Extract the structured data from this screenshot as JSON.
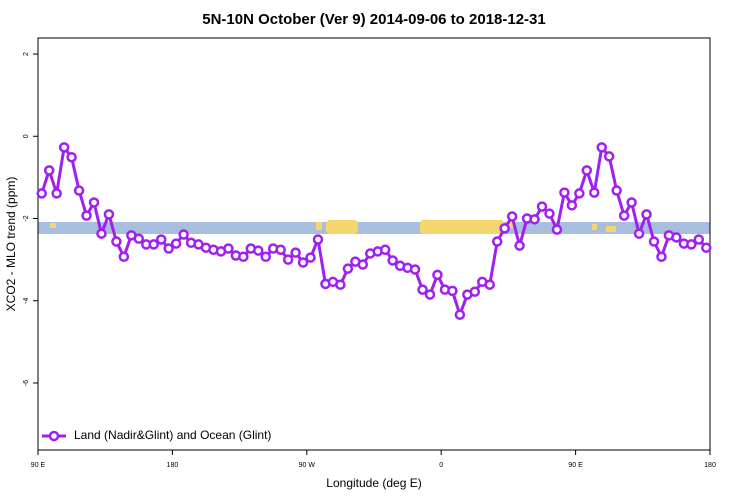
{
  "chart_data": {
    "type": "line",
    "title": "5N-10N October (Ver 9)   2014-09-06 to 2018-12-31",
    "x_label": "Longitude (deg E)",
    "y_label": "XCO2 - MLO trend (ppm)",
    "x": [
      92.5,
      97.5,
      102.5,
      107.5,
      112.5,
      117.5,
      122.5,
      127.5,
      132.5,
      137.5,
      142.5,
      147.5,
      152.5,
      157.5,
      162.5,
      167.5,
      172.5,
      177.5,
      182.5,
      187.5,
      192.5,
      197.5,
      202.5,
      207.5,
      212.5,
      217.5,
      222.5,
      227.5,
      232.5,
      237.5,
      242.5,
      247.5,
      252.5,
      257.5,
      262.5,
      267.5,
      272.5,
      277.5,
      282.5,
      287.5,
      292.5,
      297.5,
      302.5,
      307.5,
      312.5,
      317.5,
      322.5,
      327.5,
      332.5,
      337.5,
      342.5,
      347.5,
      352.5,
      357.5,
      362.5,
      367.5,
      372.5,
      377.5,
      382.5,
      387.5,
      392.5,
      397.5,
      402.5,
      407.5,
      412.5,
      417.5,
      422.5,
      427.5,
      432.5,
      437.5,
      442.5,
      447.5,
      452.5,
      457.5,
      462.5,
      467.5,
      472.5,
      477.5,
      482.5,
      487.5,
      492.5,
      497.5,
      502.5,
      507.5,
      512.5,
      517.5,
      522.5,
      527.5,
      532.5,
      537.5
    ],
    "series": [
      {
        "name": "Land (Nadir&Glint) and Ocean (Glint)",
        "color": "#a020f0",
        "values": [
          -1.39,
          -0.83,
          -1.39,
          -0.27,
          -0.51,
          -1.32,
          -1.93,
          -1.61,
          -2.37,
          -1.9,
          -2.56,
          -2.93,
          -2.41,
          -2.49,
          -2.63,
          -2.63,
          -2.51,
          -2.73,
          -2.61,
          -2.39,
          -2.59,
          -2.63,
          -2.71,
          -2.76,
          -2.8,
          -2.73,
          -2.9,
          -2.93,
          -2.73,
          -2.78,
          -2.93,
          -2.73,
          -2.76,
          -3.0,
          -2.83,
          -3.07,
          -2.95,
          -2.51,
          -3.59,
          -3.54,
          -3.61,
          -3.22,
          -3.05,
          -3.12,
          -2.85,
          -2.8,
          -2.76,
          -3.02,
          -3.15,
          -3.2,
          -3.24,
          -3.73,
          -3.85,
          -3.37,
          -3.73,
          -3.76,
          -4.34,
          -3.85,
          -3.78,
          -3.54,
          -3.61,
          -2.56,
          -2.24,
          -1.95,
          -2.66,
          -2.0,
          -2.02,
          -1.71,
          -1.88,
          -2.27,
          -1.37,
          -1.68,
          -1.39,
          -0.83,
          -1.37,
          -0.27,
          -0.49,
          -1.32,
          -1.93,
          -1.61,
          -2.37,
          -1.9,
          -2.56,
          -2.93,
          -2.41,
          -2.46,
          -2.61,
          -2.63,
          -2.51,
          -2.71
        ]
      }
    ],
    "xlim": [
      90,
      540
    ],
    "xticks": [
      {
        "value": 90,
        "label": "90 E"
      },
      180,
      {
        "value": 270,
        "label": "90 W"
      },
      {
        "value": 360,
        "label": "0"
      },
      {
        "value": 450,
        "label": "90 E"
      },
      {
        "value": 540,
        "label": "180"
      }
    ],
    "ylim": [
      -7.63,
      2.39
    ],
    "yticks": [
      2,
      0,
      -2,
      -4,
      -6
    ],
    "legend": "bottom-left"
  }
}
